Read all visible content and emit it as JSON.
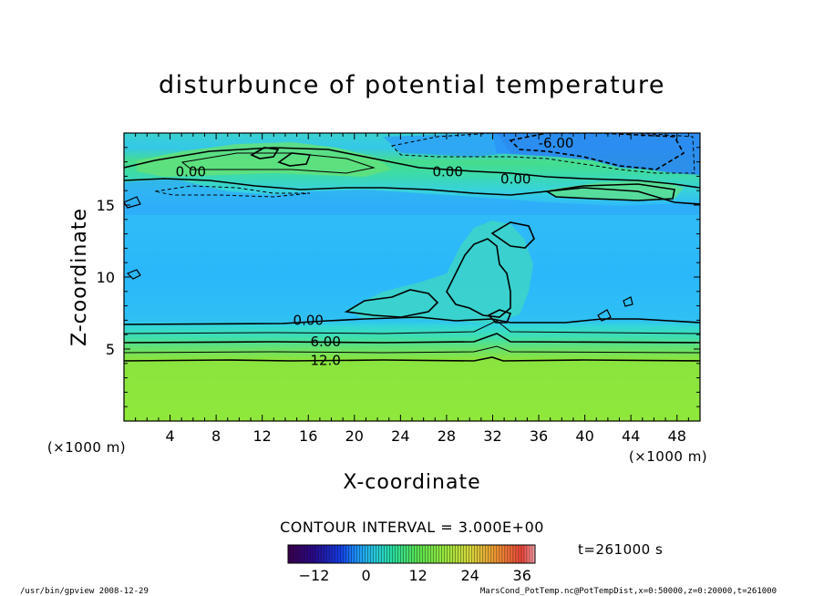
{
  "chart_data": {
    "type": "heatmap",
    "title": "disturbunce of potential temperature",
    "xlabel": "X-coordinate",
    "ylabel": "Z-coordinate",
    "x_unit": "(×1000 m)",
    "y_unit": "(×1000 m)",
    "xlim": [
      0,
      50
    ],
    "ylim": [
      0,
      20
    ],
    "xticks": [
      4,
      8,
      12,
      16,
      20,
      24,
      28,
      32,
      36,
      40,
      44,
      48
    ],
    "yticks": [
      5,
      10,
      15
    ],
    "contour_interval": "CONTOUR INTERVAL = 3.000E+00",
    "contour_labels": [
      {
        "text": "-6.00",
        "x": 37.5,
        "z": 19.3
      },
      {
        "text": "0.00",
        "x": 5.8,
        "z": 17.3
      },
      {
        "text": "0.00",
        "x": 28.1,
        "z": 17.3
      },
      {
        "text": "0.00",
        "x": 34.0,
        "z": 16.8
      },
      {
        "text": "0.00",
        "x": 16.0,
        "z": 7.0
      },
      {
        "text": "6.00",
        "x": 17.5,
        "z": 5.5
      },
      {
        "text": "12.0",
        "x": 17.5,
        "z": 4.2
      }
    ],
    "vertical_profile": [
      {
        "z": 0,
        "value": 20
      },
      {
        "z": 4.3,
        "value": 14
      },
      {
        "z": 5.5,
        "value": 7
      },
      {
        "z": 6.6,
        "value": 2
      },
      {
        "z": 7.0,
        "value": -2
      },
      {
        "z": 15.5,
        "value": -2
      },
      {
        "z": 17.5,
        "value": 2
      },
      {
        "z": 19.3,
        "value": -5
      },
      {
        "z": 20,
        "value": -2
      }
    ],
    "colorbar": {
      "min": -18,
      "max": 39,
      "ticks": [
        -12,
        0,
        12,
        24,
        36
      ],
      "tick_labels": [
        "−12",
        "0",
        "12",
        "24",
        "36"
      ]
    },
    "time_label": "t=261000 s"
  },
  "footer": {
    "left": "/usr/bin/gpview  2008-12-29",
    "right": "MarsCond_PotTemp.nc@PotTempDist,x=0:50000,z=0:20000,t=261000"
  },
  "colors": {
    "background": "#ffffff",
    "warm": "#8ee83a",
    "neutral": "#34dcd8",
    "cool": "#2faeff",
    "cold": "#2a84f4",
    "contour": "#000000"
  }
}
